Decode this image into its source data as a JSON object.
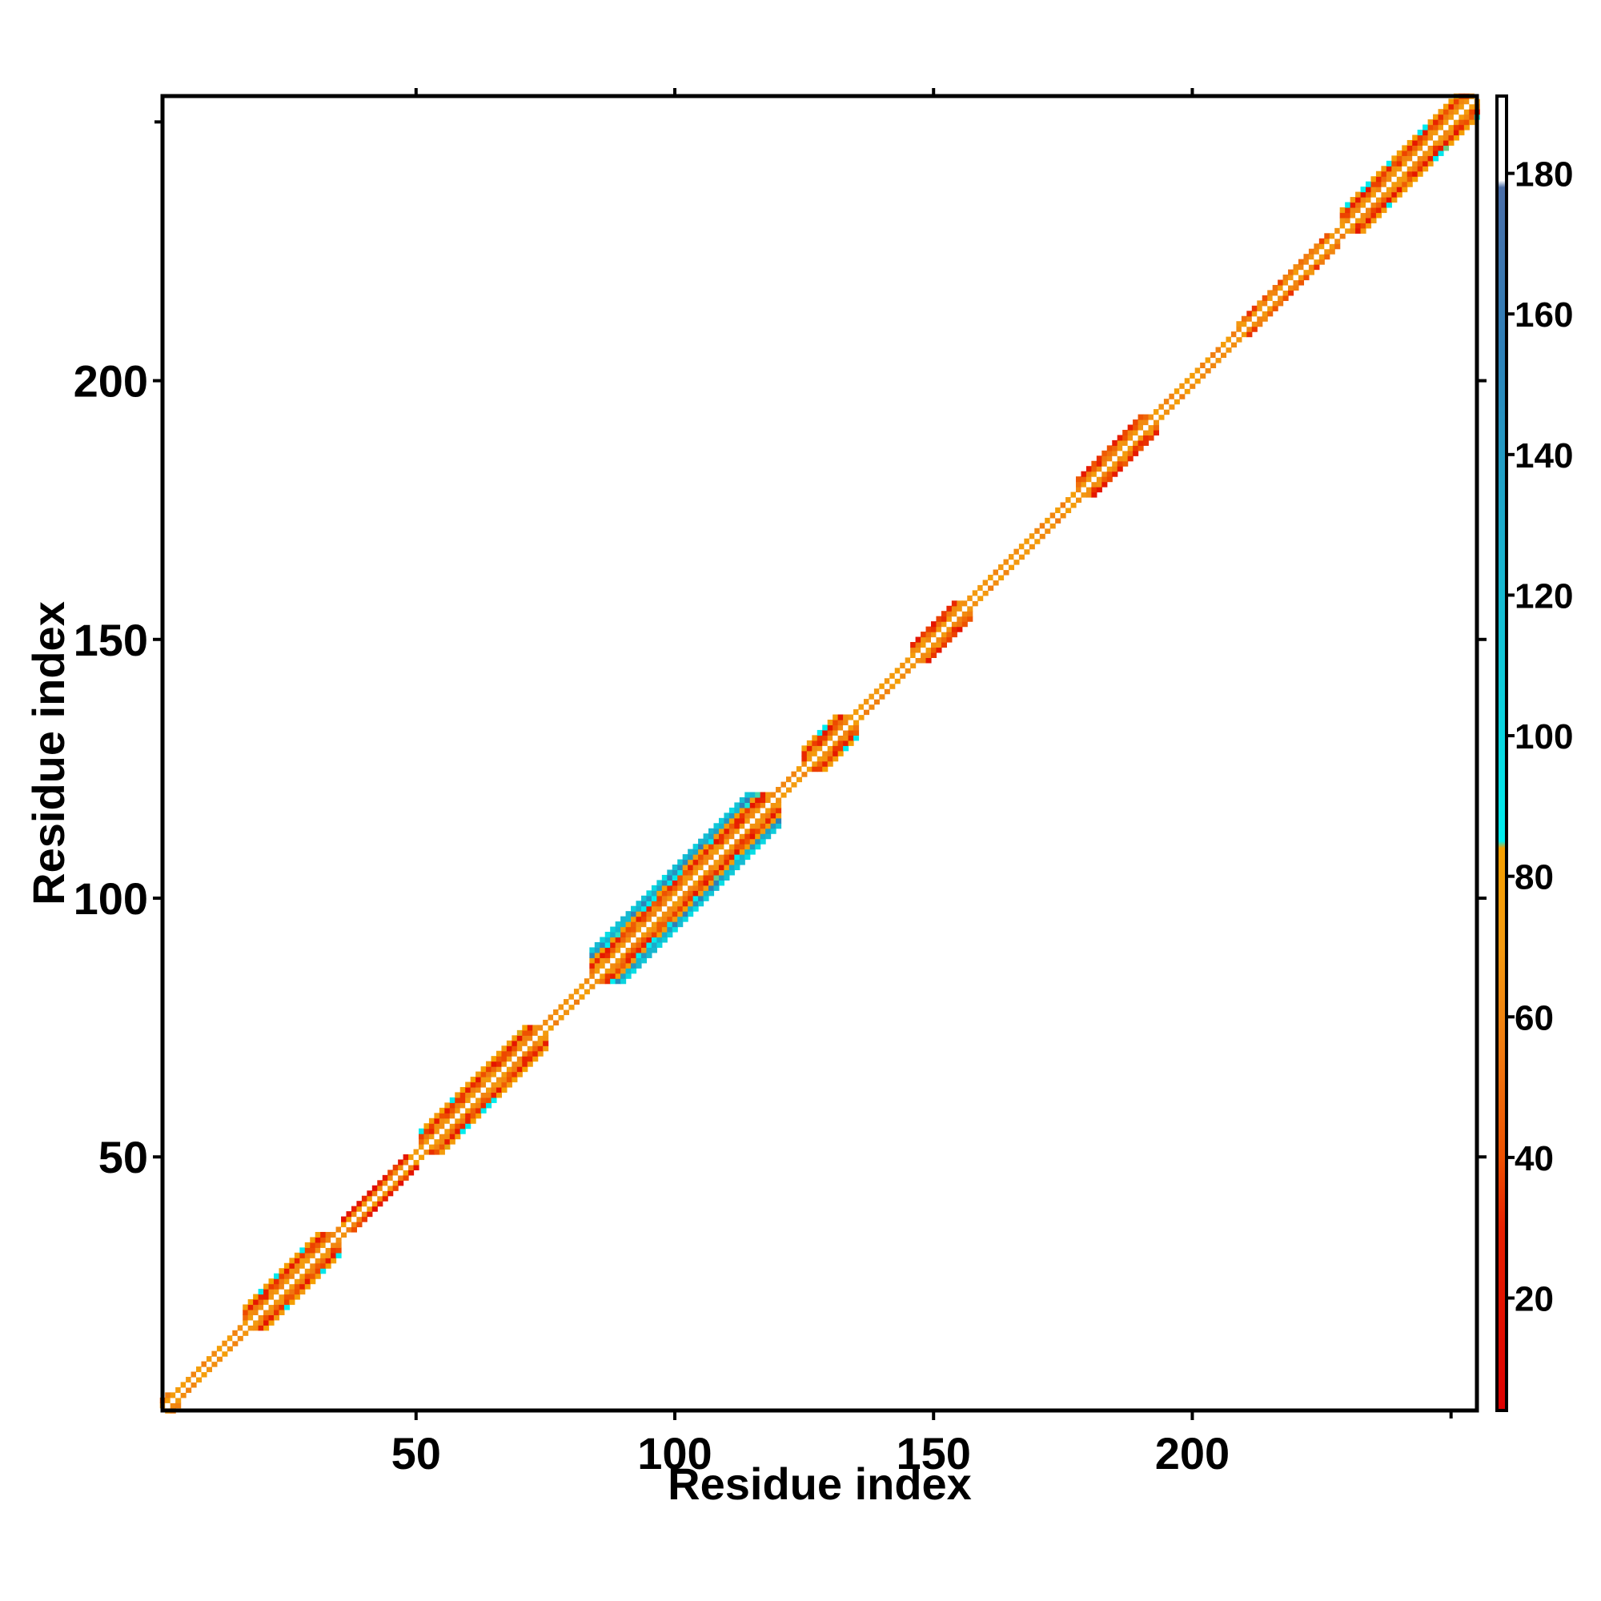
{
  "chart_data": {
    "type": "heatmap",
    "title": "",
    "xlabel": "Residue index",
    "ylabel": "Residue index",
    "xlim": [
      1,
      255
    ],
    "ylim": [
      1,
      255
    ],
    "xticks": [
      50,
      100,
      150,
      200
    ],
    "yticks": [
      50,
      100,
      150,
      200
    ],
    "grid": false,
    "diagonal_value": 190,
    "band_segments": [
      {
        "start": 1,
        "end": 4,
        "halfwidth": 2,
        "type": "helix"
      },
      {
        "start": 5,
        "end": 15,
        "halfwidth": 1,
        "type": "turn"
      },
      {
        "start": 17,
        "end": 35,
        "halfwidth": 4,
        "type": "helix"
      },
      {
        "start": 36,
        "end": 50,
        "halfwidth": 2,
        "type": "coil"
      },
      {
        "start": 51,
        "end": 75,
        "halfwidth": 4,
        "type": "helix"
      },
      {
        "start": 76,
        "end": 83,
        "halfwidth": 1,
        "type": "turn"
      },
      {
        "start": 84,
        "end": 120,
        "halfwidth": 6,
        "type": "helix"
      },
      {
        "start": 121,
        "end": 124,
        "halfwidth": 1,
        "type": "turn"
      },
      {
        "start": 125,
        "end": 135,
        "halfwidth": 4,
        "type": "helix"
      },
      {
        "start": 136,
        "end": 145,
        "halfwidth": 1,
        "type": "coil"
      },
      {
        "start": 146,
        "end": 157,
        "halfwidth": 3,
        "type": "helix"
      },
      {
        "start": 158,
        "end": 177,
        "halfwidth": 1,
        "type": "coil"
      },
      {
        "start": 178,
        "end": 193,
        "halfwidth": 3,
        "type": "helix"
      },
      {
        "start": 194,
        "end": 208,
        "halfwidth": 1,
        "type": "coil"
      },
      {
        "start": 209,
        "end": 228,
        "halfwidth": 2,
        "type": "helix"
      },
      {
        "start": 229,
        "end": 255,
        "halfwidth": 4,
        "type": "helix"
      }
    ],
    "colorbar": {
      "min": 4,
      "max": 191,
      "ticks": [
        20,
        40,
        60,
        80,
        100,
        120,
        140,
        160,
        180
      ],
      "stops": [
        {
          "value": 4,
          "color": "#dd0000"
        },
        {
          "value": 30,
          "color": "#e82000"
        },
        {
          "value": 40,
          "color": "#ee5000"
        },
        {
          "value": 55,
          "color": "#f07a10"
        },
        {
          "value": 70,
          "color": "#f39a10"
        },
        {
          "value": 84,
          "color": "#f5a000"
        },
        {
          "value": 85,
          "color": "#00eeee"
        },
        {
          "value": 110,
          "color": "#10c8d8"
        },
        {
          "value": 135,
          "color": "#1fa4c8"
        },
        {
          "value": 155,
          "color": "#2e80b8"
        },
        {
          "value": 178,
          "color": "#4a6ea8"
        },
        {
          "value": 179,
          "color": "#ffffff"
        },
        {
          "value": 191,
          "color": "#ffffff"
        }
      ]
    }
  }
}
